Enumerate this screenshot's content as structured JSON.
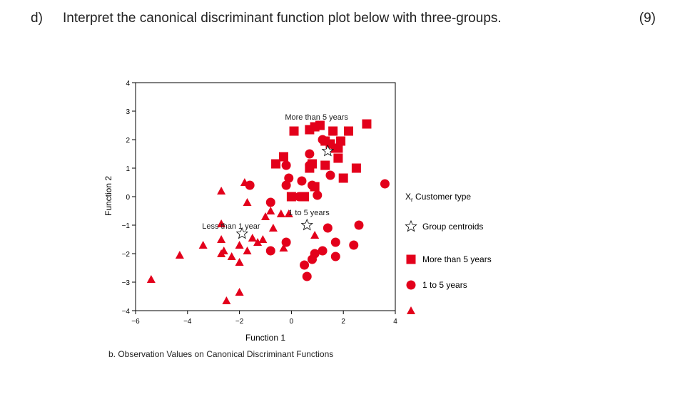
{
  "question": {
    "label": "d)",
    "text": "Interpret the canonical discriminant function plot below with three-groups.",
    "marks": "(9)"
  },
  "caption": "b. Observation Values on Canonical Discriminant Functions",
  "chart_data": {
    "type": "scatter",
    "xlabel": "Function 1",
    "ylabel": "Function 2",
    "xlim": [
      -6,
      4
    ],
    "ylim": [
      -4,
      4
    ],
    "xticks": [
      "-6",
      "-4",
      "-2",
      "0",
      "2",
      "4"
    ],
    "yticks": [
      "-4",
      "-3",
      "-2",
      "-1",
      "0",
      "1",
      "2",
      "3",
      "4"
    ],
    "xtick_values": [
      -6,
      -4,
      -2,
      0,
      2,
      4
    ],
    "ytick_values": [
      -4,
      -3,
      -2,
      -1,
      0,
      1,
      2,
      3,
      4
    ],
    "legend": {
      "title": "X",
      "title_subscript": "r",
      "title_rest": " Customer type",
      "centroid_label": "Group centroids",
      "entries": [
        "More than 5 years",
        "1 to 5 years",
        ""
      ],
      "placement": "right"
    },
    "color": "#e3001b",
    "series": [
      {
        "name": "More than 5 years",
        "marker": "square",
        "points": [
          [
            0.1,
            2.3
          ],
          [
            0.7,
            2.35
          ],
          [
            0.9,
            2.45
          ],
          [
            1.1,
            2.5
          ],
          [
            1.6,
            2.3
          ],
          [
            2.2,
            2.3
          ],
          [
            2.9,
            2.55
          ],
          [
            1.3,
            1.95
          ],
          [
            1.5,
            1.85
          ],
          [
            1.7,
            1.7
          ],
          [
            1.9,
            1.95
          ],
          [
            1.8,
            1.7
          ],
          [
            -0.3,
            1.4
          ],
          [
            -0.6,
            1.15
          ],
          [
            0.8,
            1.15
          ],
          [
            0.7,
            1.0
          ],
          [
            1.3,
            1.1
          ],
          [
            1.8,
            1.35
          ],
          [
            2.5,
            1.0
          ],
          [
            2.0,
            0.65
          ],
          [
            0.9,
            0.35
          ],
          [
            0.5,
            0.0
          ],
          [
            0.0,
            0.0
          ]
        ]
      },
      {
        "name": "1 to 5 years",
        "marker": "circle",
        "points": [
          [
            1.2,
            2.0
          ],
          [
            -0.2,
            1.1
          ],
          [
            0.7,
            1.5
          ],
          [
            0.7,
            1.1
          ],
          [
            -0.1,
            0.65
          ],
          [
            0.4,
            0.55
          ],
          [
            1.5,
            0.75
          ],
          [
            -1.6,
            0.4
          ],
          [
            -0.8,
            -0.2
          ],
          [
            -0.2,
            0.4
          ],
          [
            0.8,
            0.4
          ],
          [
            0.3,
            0.0
          ],
          [
            1.0,
            0.05
          ],
          [
            3.6,
            0.45
          ],
          [
            1.4,
            -1.1
          ],
          [
            2.6,
            -1.0
          ],
          [
            -0.2,
            -1.6
          ],
          [
            1.7,
            -1.6
          ],
          [
            2.4,
            -1.7
          ],
          [
            -0.8,
            -1.9
          ],
          [
            1.2,
            -1.9
          ],
          [
            0.9,
            -2.0
          ],
          [
            0.8,
            -2.2
          ],
          [
            1.7,
            -2.1
          ],
          [
            0.5,
            -2.4
          ],
          [
            0.6,
            -2.8
          ]
        ]
      },
      {
        "name": "",
        "marker": "triangle",
        "points": [
          [
            -2.7,
            0.2
          ],
          [
            -1.8,
            0.5
          ],
          [
            -1.7,
            -0.2
          ],
          [
            -1.0,
            -0.7
          ],
          [
            -0.8,
            -0.5
          ],
          [
            -0.4,
            -0.6
          ],
          [
            -0.7,
            -1.1
          ],
          [
            -0.1,
            -0.6
          ],
          [
            -2.7,
            -0.95
          ],
          [
            -1.5,
            -1.45
          ],
          [
            -1.3,
            -1.6
          ],
          [
            -1.1,
            -1.5
          ],
          [
            -2.0,
            -1.7
          ],
          [
            -1.7,
            -1.9
          ],
          [
            -2.7,
            -1.5
          ],
          [
            -3.4,
            -1.7
          ],
          [
            -2.6,
            -1.9
          ],
          [
            -2.7,
            -2.0
          ],
          [
            -2.3,
            -2.1
          ],
          [
            -2.0,
            -2.3
          ],
          [
            -4.3,
            -2.05
          ],
          [
            -5.4,
            -2.9
          ],
          [
            -2.5,
            -3.65
          ],
          [
            -2.0,
            -3.35
          ],
          [
            0.9,
            -1.35
          ],
          [
            -0.3,
            -1.8
          ]
        ]
      }
    ],
    "centroids": [
      {
        "label": "More than 5 years",
        "x": 1.4,
        "y": 1.6
      },
      {
        "label": "1 to 5 years",
        "x": 0.6,
        "y": -1.0
      },
      {
        "label": "Less than 1 year",
        "x": -1.9,
        "y": -1.3
      }
    ]
  }
}
